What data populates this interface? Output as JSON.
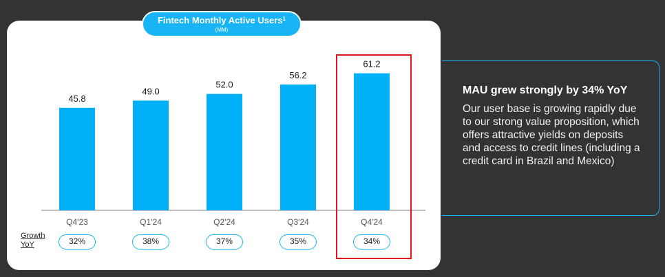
{
  "chart_data": {
    "type": "bar",
    "title": "Fintech Monthly Active Users",
    "title_superscript": "1",
    "subtitle": "(MM)",
    "categories": [
      "Q4'23",
      "Q1'24",
      "Q2'24",
      "Q3'24",
      "Q4'24"
    ],
    "values": [
      45.8,
      49.0,
      52.0,
      56.2,
      61.2
    ],
    "value_labels": [
      "45.8",
      "49.0",
      "52.0",
      "56.2",
      "61.2"
    ],
    "ylim": [
      0,
      66
    ],
    "grid": false,
    "bar_color": "#00B1F7",
    "highlight_category": "Q4'24",
    "highlight_color": "#E2141C",
    "growth_label": "Growth YoY",
    "growth_yoy": [
      "32%",
      "38%",
      "37%",
      "35%",
      "34%"
    ]
  },
  "info": {
    "heading": "MAU grew strongly by 34% YoY",
    "body": "Our user base is growing rapidly due to our strong value proposition, which offers attractive yields on deposits and access to credit lines (including a credit card in Brazil and Mexico)"
  }
}
